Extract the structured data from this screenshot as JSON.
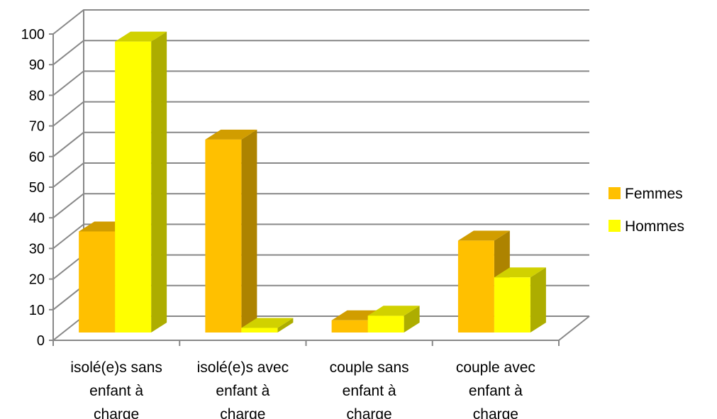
{
  "chart_data": {
    "type": "bar",
    "title": "",
    "xlabel": "",
    "ylabel": "",
    "ylim": [
      0,
      100
    ],
    "yticks": [
      0,
      10,
      20,
      30,
      40,
      50,
      60,
      70,
      80,
      90,
      100
    ],
    "grid": true,
    "legend_position": "right",
    "categories": [
      [
        "isolé(e)s sans",
        "enfant à",
        "charge"
      ],
      [
        "isolé(e)s avec",
        "enfant à",
        "charge"
      ],
      [
        "couple sans",
        "enfant à",
        "charge"
      ],
      [
        "couple avec",
        "enfant à",
        "charge"
      ]
    ],
    "series": [
      {
        "name": "Femmes",
        "values": [
          33,
          63,
          4,
          30
        ],
        "color": "#FFC000"
      },
      {
        "name": "Hommes",
        "values": [
          95,
          1.5,
          5.5,
          18
        ],
        "color": "#FFFF00"
      }
    ]
  }
}
